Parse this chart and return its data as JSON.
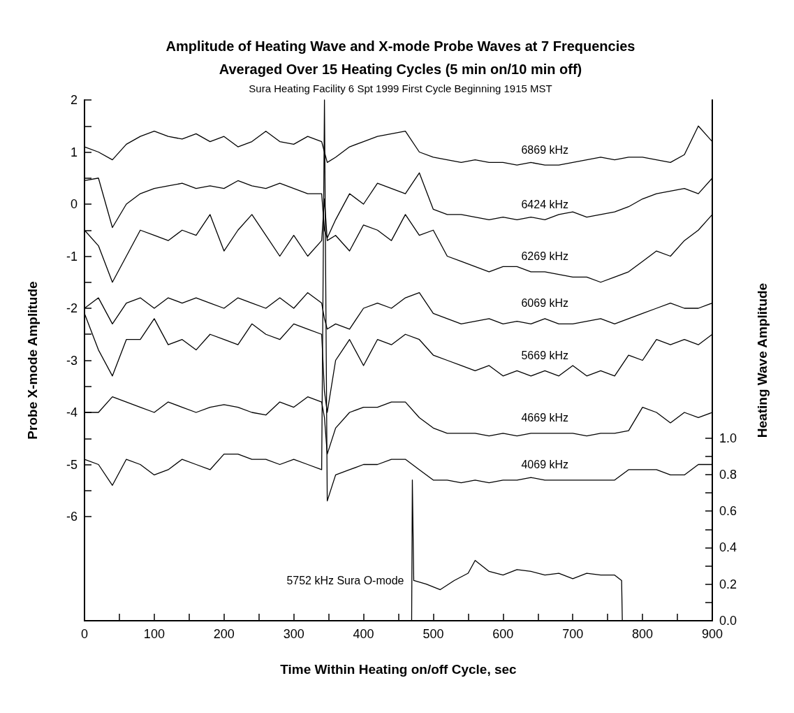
{
  "chart_data": {
    "type": "line",
    "title": "Amplitude of Heating Wave and X-mode Probe Waves at 7 Frequencies\nAveraged Over 15 Heating Cycles (5 min on/10 min off)",
    "subtitle": "Sura Heating Facility 6 Spt 1999 First Cycle Beginning 1915 MST",
    "xlabel": "Time Within Heating on/off Cycle, sec",
    "ylabel": "Probe X-mode Amplitude",
    "y2label": "Heating Wave Amplitude",
    "x": [
      0,
      20,
      40,
      60,
      80,
      100,
      120,
      140,
      160,
      180,
      200,
      220,
      240,
      260,
      280,
      300,
      320,
      340,
      344,
      348,
      360,
      380,
      400,
      420,
      440,
      460,
      480,
      500,
      520,
      540,
      560,
      580,
      600,
      620,
      640,
      660,
      680,
      700,
      720,
      740,
      760,
      780,
      800,
      820,
      840,
      860,
      880,
      900
    ],
    "series": [
      {
        "name": "6869 kHz",
        "color": "#000000",
        "values": [
          1.1,
          1.0,
          0.85,
          1.15,
          1.3,
          1.4,
          1.3,
          1.25,
          1.35,
          1.2,
          1.3,
          1.1,
          1.2,
          1.4,
          1.2,
          1.15,
          1.3,
          1.2,
          1.0,
          0.8,
          0.9,
          1.1,
          1.2,
          1.3,
          1.35,
          1.4,
          1.0,
          0.9,
          0.85,
          0.8,
          0.85,
          0.8,
          0.8,
          0.75,
          0.8,
          0.75,
          0.75,
          0.8,
          0.85,
          0.9,
          0.85,
          0.9,
          0.9,
          0.85,
          0.8,
          0.95,
          1.5,
          1.2
        ]
      },
      {
        "name": "6424 kHz",
        "color": "#000000",
        "values": [
          0.45,
          0.5,
          -0.45,
          0.0,
          0.2,
          0.3,
          0.35,
          0.4,
          0.3,
          0.35,
          0.3,
          0.45,
          0.35,
          0.3,
          0.4,
          0.3,
          0.2,
          0.2,
          -0.5,
          -0.65,
          -0.3,
          0.2,
          0.0,
          0.4,
          0.3,
          0.2,
          0.6,
          -0.1,
          -0.2,
          -0.2,
          -0.25,
          -0.3,
          -0.25,
          -0.3,
          -0.25,
          -0.3,
          -0.2,
          -0.15,
          -0.25,
          -0.2,
          -0.15,
          -0.05,
          0.1,
          0.2,
          0.25,
          0.3,
          0.2,
          0.5
        ]
      },
      {
        "name": "6269 kHz",
        "color": "#000000",
        "values": [
          -0.5,
          -0.8,
          -1.5,
          -1.0,
          -0.5,
          -0.6,
          -0.7,
          -0.5,
          -0.6,
          -0.2,
          -0.9,
          -0.5,
          -0.2,
          -0.6,
          -1.0,
          -0.6,
          -1.0,
          -0.7,
          0.1,
          -0.7,
          -0.6,
          -0.9,
          -0.4,
          -0.5,
          -0.7,
          -0.2,
          -0.6,
          -0.5,
          -1.0,
          -1.1,
          -1.2,
          -1.3,
          -1.2,
          -1.2,
          -1.3,
          -1.3,
          -1.35,
          -1.4,
          -1.4,
          -1.5,
          -1.4,
          -1.3,
          -1.1,
          -0.9,
          -1.0,
          -0.7,
          -0.5,
          -0.2
        ]
      },
      {
        "name": "6069 kHz",
        "color": "#000000",
        "values": [
          -2.0,
          -1.8,
          -2.3,
          -1.9,
          -1.8,
          -2.0,
          -1.8,
          -1.9,
          -1.8,
          -1.9,
          -2.0,
          -1.8,
          -1.9,
          -2.0,
          -1.8,
          -2.0,
          -1.7,
          -1.9,
          -2.2,
          -2.4,
          -2.3,
          -2.4,
          -2.0,
          -1.9,
          -2.0,
          -1.8,
          -1.7,
          -2.1,
          -2.2,
          -2.3,
          -2.25,
          -2.2,
          -2.3,
          -2.25,
          -2.3,
          -2.2,
          -2.3,
          -2.3,
          -2.25,
          -2.2,
          -2.3,
          -2.2,
          -2.1,
          -2.0,
          -1.9,
          -2.0,
          -2.0,
          -1.9
        ]
      },
      {
        "name": "5669 kHz",
        "color": "#000000",
        "values": [
          -2.1,
          -2.8,
          -3.3,
          -2.6,
          -2.6,
          -2.2,
          -2.7,
          -2.6,
          -2.8,
          -2.5,
          -2.6,
          -2.7,
          -2.3,
          -2.5,
          -2.6,
          -2.3,
          -2.4,
          -2.5,
          -3.6,
          -4.0,
          -3.0,
          -2.6,
          -3.1,
          -2.6,
          -2.7,
          -2.5,
          -2.6,
          -2.9,
          -3.0,
          -3.1,
          -3.2,
          -3.1,
          -3.3,
          -3.2,
          -3.3,
          -3.2,
          -3.3,
          -3.1,
          -3.3,
          -3.2,
          -3.3,
          -2.9,
          -3.0,
          -2.6,
          -2.7,
          -2.6,
          -2.7,
          -2.5
        ]
      },
      {
        "name": "4669 kHz",
        "color": "#000000",
        "values": [
          -4.0,
          -4.0,
          -3.7,
          -3.8,
          -3.9,
          -4.0,
          -3.8,
          -3.9,
          -4.0,
          -3.9,
          -3.85,
          -3.9,
          -4.0,
          -4.05,
          -3.8,
          -3.9,
          -3.7,
          -3.8,
          -4.1,
          -4.8,
          -4.3,
          -4.0,
          -3.9,
          -3.9,
          -3.8,
          -3.8,
          -4.1,
          -4.3,
          -4.4,
          -4.4,
          -4.4,
          -4.45,
          -4.4,
          -4.45,
          -4.4,
          -4.4,
          -4.4,
          -4.4,
          -4.45,
          -4.4,
          -4.4,
          -4.35,
          -3.9,
          -4.0,
          -4.2,
          -4.0,
          -4.1,
          -4.0
        ]
      },
      {
        "name": "4069 kHz",
        "color": "#000000",
        "values": [
          -4.9,
          -5.0,
          -5.4,
          -4.9,
          -5.0,
          -5.2,
          -5.1,
          -4.9,
          -5.0,
          -5.1,
          -4.8,
          -4.8,
          -4.9,
          -4.9,
          -5.0,
          -4.9,
          -5.0,
          -5.1,
          2.0,
          -5.7,
          -5.2,
          -5.1,
          -5.0,
          -5.0,
          -4.9,
          -4.9,
          -5.1,
          -5.3,
          -5.3,
          -5.35,
          -5.3,
          -5.35,
          -5.3,
          -5.3,
          -5.25,
          -5.3,
          -5.3,
          -5.3,
          -5.3,
          -5.3,
          -5.3,
          -5.1,
          -5.1,
          -5.1,
          -5.2,
          -5.2,
          -5.0,
          -5.0
        ]
      },
      {
        "name": "5752 kHz Sura O-mode",
        "color": "#000000",
        "axis": "y2",
        "x": [
          0,
          469,
          470,
          472,
          490,
          510,
          530,
          550,
          560,
          580,
          600,
          620,
          640,
          660,
          680,
          700,
          720,
          740,
          760,
          770,
          771,
          900
        ],
        "values": [
          0,
          0,
          0.77,
          0.22,
          0.2,
          0.17,
          0.22,
          0.26,
          0.33,
          0.27,
          0.25,
          0.28,
          0.27,
          0.25,
          0.26,
          0.23,
          0.26,
          0.25,
          0.25,
          0.22,
          0,
          0
        ]
      }
    ],
    "xlim": [
      0,
      900
    ],
    "xticks": [
      0,
      {
        "value": 50,
        "label": null
      },
      100,
      {
        "value": 150,
        "label": null
      },
      200,
      {
        "value": 250,
        "label": null
      },
      300,
      {
        "value": 350,
        "label": null
      },
      400,
      {
        "value": 450,
        "label": null
      },
      500,
      {
        "value": 550,
        "label": null
      },
      600,
      {
        "value": 650,
        "label": null
      },
      700,
      {
        "value": 750,
        "label": null
      },
      800,
      {
        "value": 850,
        "label": null
      },
      900
    ],
    "ylim": [
      -8,
      2
    ],
    "yticks": [
      2,
      {
        "value": 1.5,
        "label": null
      },
      1,
      {
        "value": 0.5,
        "label": null
      },
      0,
      {
        "value": -0.5,
        "label": null
      },
      -1,
      {
        "value": -1.5,
        "label": null
      },
      -2,
      {
        "value": -2.5,
        "label": null
      },
      -3,
      {
        "value": -3.5,
        "label": null
      },
      -4,
      {
        "value": -4.5,
        "label": null
      },
      -5,
      {
        "value": -5.5,
        "label": null
      },
      -6
    ],
    "y2lim": [
      0,
      2.85
    ],
    "y2ticks": [
      {
        "value": 0,
        "label": "0.0"
      },
      {
        "value": 0.1,
        "label": null
      },
      {
        "value": 0.2,
        "label": "0.2"
      },
      {
        "value": 0.3,
        "label": null
      },
      {
        "value": 0.4,
        "label": "0.4"
      },
      {
        "value": 0.5,
        "label": null
      },
      {
        "value": 0.6,
        "label": "0.6"
      },
      {
        "value": 0.7,
        "label": null
      },
      {
        "value": 0.8,
        "label": "0.8"
      },
      {
        "value": 0.9,
        "label": null
      },
      {
        "value": 1.0,
        "label": "1.0"
      }
    ],
    "grid": false,
    "legend": false,
    "marker": "none",
    "line_style": "solid"
  }
}
